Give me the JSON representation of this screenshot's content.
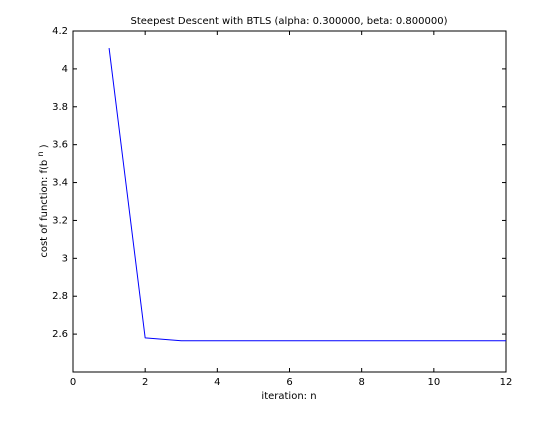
{
  "chart_data": {
    "type": "line",
    "title": "Steepest Descent with BTLS (alpha: 0.300000, beta: 0.800000)",
    "xlabel": "iteration: n",
    "ylabel_main": "cost of function: f(b",
    "ylabel_sup": "n",
    "ylabel_end": ")",
    "xlim": [
      0,
      12
    ],
    "ylim": [
      2.4,
      4.2
    ],
    "xticks": [
      0,
      2,
      4,
      6,
      8,
      10,
      12
    ],
    "yticks": [
      2.6,
      2.8,
      3,
      3.2,
      3.4,
      3.6,
      3.8,
      4,
      4.2
    ],
    "grid": false,
    "colors": {
      "line": "#0000ff",
      "axes": "#000000",
      "background": "#ffffff"
    },
    "series": [
      {
        "x": [
          1,
          2,
          3,
          4,
          5,
          6,
          7,
          8,
          9,
          10,
          11,
          12
        ],
        "values": [
          4.11,
          2.58,
          2.565,
          2.565,
          2.565,
          2.565,
          2.565,
          2.565,
          2.565,
          2.565,
          2.565,
          2.565
        ]
      }
    ]
  }
}
